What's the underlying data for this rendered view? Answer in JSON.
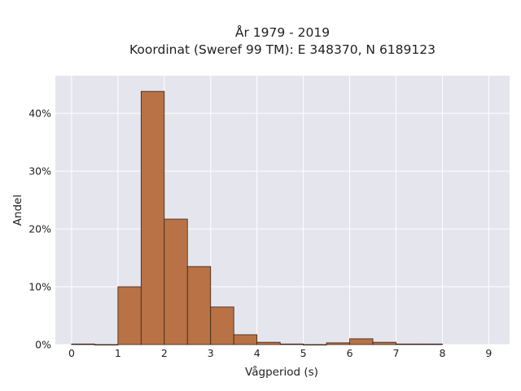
{
  "chart_data": {
    "type": "bar",
    "title_line1": "År 1979 - 2019",
    "title_line2": "Koordinat (Sweref 99 TM): E 348370, N 6189123",
    "xlabel": "Vågperiod (s)",
    "ylabel": "Andel",
    "xlim": [
      -0.35,
      9.45
    ],
    "ylim": [
      0,
      46.5
    ],
    "x_ticks": [
      0,
      1,
      2,
      3,
      4,
      5,
      6,
      7,
      8,
      9
    ],
    "y_ticks": [
      0,
      10,
      20,
      30,
      40
    ],
    "y_tick_labels": [
      "0%",
      "10%",
      "20%",
      "30%",
      "40%"
    ],
    "bin_width": 0.5,
    "bins": [
      {
        "start": 0.0,
        "value": 0.1
      },
      {
        "start": 0.5,
        "value": 0.0
      },
      {
        "start": 1.0,
        "value": 10.0
      },
      {
        "start": 1.5,
        "value": 43.8
      },
      {
        "start": 2.0,
        "value": 21.7
      },
      {
        "start": 2.5,
        "value": 13.5
      },
      {
        "start": 3.0,
        "value": 6.5
      },
      {
        "start": 3.5,
        "value": 1.7
      },
      {
        "start": 4.0,
        "value": 0.4
      },
      {
        "start": 4.5,
        "value": 0.1
      },
      {
        "start": 5.0,
        "value": 0.0
      },
      {
        "start": 5.5,
        "value": 0.3
      },
      {
        "start": 6.0,
        "value": 1.0
      },
      {
        "start": 6.5,
        "value": 0.4
      },
      {
        "start": 7.0,
        "value": 0.1
      },
      {
        "start": 7.5,
        "value": 0.1
      }
    ],
    "grid": true,
    "colors": {
      "plot_bg": "#e5e5ee",
      "grid": "#ffffff",
      "bar_fill": "#b87245",
      "bar_stroke": "#3a2314"
    }
  }
}
